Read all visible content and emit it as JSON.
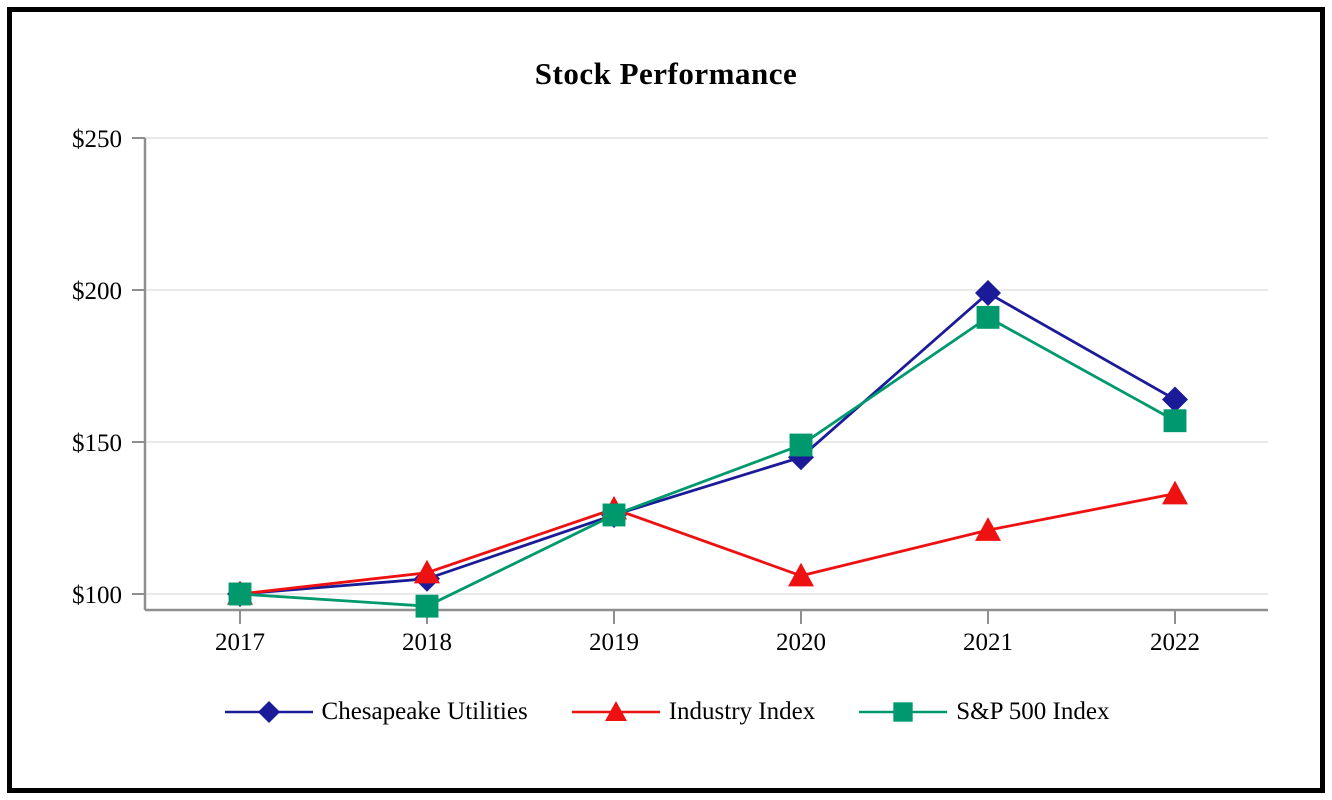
{
  "chart_data": {
    "type": "line",
    "title": "Stock Performance",
    "categories": [
      "2017",
      "2018",
      "2019",
      "2020",
      "2021",
      "2022"
    ],
    "y_ticks": [
      100,
      150,
      200,
      250
    ],
    "y_tick_labels": [
      "$100",
      "$150",
      "$200",
      "$250"
    ],
    "ylim": [
      96,
      250
    ],
    "xlabel": "",
    "ylabel": "",
    "grid": "horizontal",
    "legend_position": "bottom",
    "series": [
      {
        "name": "Chesapeake Utilities",
        "marker": "diamond",
        "color": "#1b1b99",
        "values": [
          100,
          105,
          126,
          145,
          199,
          164
        ]
      },
      {
        "name": "Industry Index",
        "marker": "triangle",
        "color": "#ee1111",
        "values": [
          100,
          107,
          128,
          106,
          121,
          133
        ]
      },
      {
        "name": "S&P 500 Index",
        "marker": "square",
        "color": "#00996d",
        "values": [
          100,
          96,
          126,
          149,
          191,
          157
        ]
      }
    ]
  },
  "style_colors": {
    "gridline": "#e9e9e9",
    "axis": "#8f8f8f",
    "tick": "#8f8f8f",
    "text": "#000000"
  }
}
